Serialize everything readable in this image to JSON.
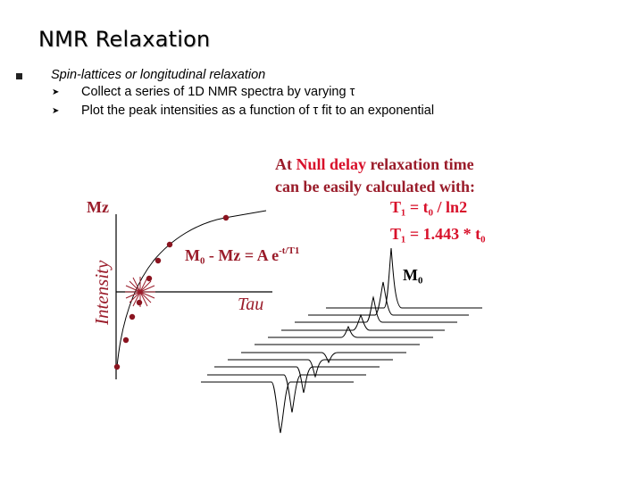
{
  "title": "NMR Relaxation",
  "bullets": [
    {
      "text": "Spin-lattices or longitudinal relaxation",
      "sub": [
        "Collect a series of 1D NMR spectra by varying τ",
        "Plot the peak intensities as a function of τ fit to an exponential"
      ]
    }
  ],
  "figure": {
    "caption_line1_a": "At ",
    "caption_line1_b": "Null delay",
    "caption_line1_c": " relaxation time",
    "caption_line2": "can be easily calculated with:",
    "formula1": "T₁ = t₀  / ln2",
    "formula2": "T₁ = 1.443 * t₀",
    "y_label_mz": "Mz",
    "y_axis_label": "Intensity",
    "x_axis_label": "Tau",
    "equation_left": "M₀ - Mz = A e",
    "equation_exp": "-t/T1",
    "peak_label": "M₀",
    "colors": {
      "red": "#d8102a",
      "maroon": "#9a1c2a",
      "point": "#8a1420"
    }
  }
}
